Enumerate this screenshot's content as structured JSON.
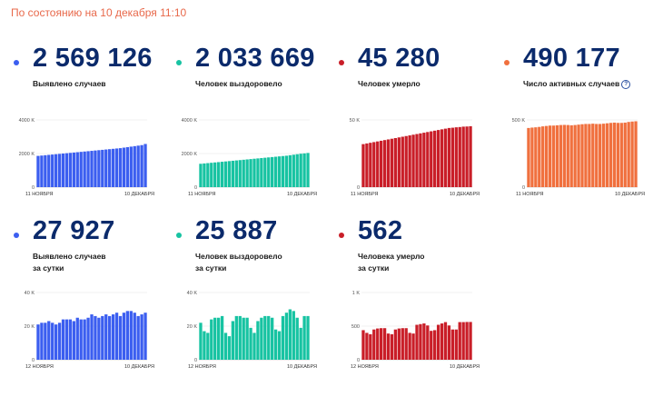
{
  "status": "По состоянию на 10 декабря 11:10",
  "cards": [
    {
      "id": "total",
      "value": "2 569 126",
      "label": "Выявлено случаев",
      "color": "#3b5ef0"
    },
    {
      "id": "recovered",
      "value": "2 033 669",
      "label": "Человек выздоровело",
      "color": "#17c3a2"
    },
    {
      "id": "deaths",
      "value": "45 280",
      "label": "Человек умерло",
      "color": "#c91e28"
    },
    {
      "id": "active",
      "value": "490 177",
      "label": "Число активных случаев",
      "color": "#f0703e",
      "has_info_icon": true
    },
    {
      "id": "daily_cases",
      "value": "27 927",
      "label": "Выявлено случаев\nза сутки",
      "color": "#3b5ef0"
    },
    {
      "id": "daily_recovered",
      "value": "25 887",
      "label": "Человек выздоровело\nза сутки",
      "color": "#17c3a2"
    },
    {
      "id": "daily_deaths",
      "value": "562",
      "label": "Человека умерло\nза сутки",
      "color": "#c91e28"
    }
  ],
  "chart_data": [
    {
      "type": "bar",
      "series": [
        {
          "values": [
            1860,
            1880,
            1900,
            1920,
            1940,
            1960,
            1980,
            2000,
            2020,
            2040,
            2060,
            2080,
            2100,
            2120,
            2140,
            2160,
            2180,
            2200,
            2220,
            2240,
            2260,
            2280,
            2300,
            2320,
            2350,
            2380,
            2410,
            2440,
            2470,
            2500,
            2569
          ]
        }
      ],
      "x_tick_labels": [
        "11 НОЯБРЯ",
        "10 ДЕКАБРЯ"
      ],
      "y_ticks": [
        0,
        2000,
        4000
      ],
      "y_tick_labels": [
        "0",
        "2000 K",
        "4000 K"
      ],
      "ylim": [
        0,
        4000
      ],
      "color": "#3b5ef0"
    },
    {
      "type": "bar",
      "series": [
        {
          "values": [
            1390,
            1410,
            1430,
            1450,
            1470,
            1490,
            1510,
            1530,
            1550,
            1570,
            1590,
            1610,
            1630,
            1650,
            1670,
            1690,
            1710,
            1730,
            1750,
            1770,
            1790,
            1810,
            1830,
            1850,
            1870,
            1900,
            1930,
            1960,
            1990,
            2010,
            2034
          ]
        }
      ],
      "x_tick_labels": [
        "11 НОЯБРЯ",
        "10 ДЕКАБРЯ"
      ],
      "y_ticks": [
        0,
        2000,
        4000
      ],
      "y_tick_labels": [
        "0",
        "2000 K",
        "4000 K"
      ],
      "ylim": [
        0,
        4000
      ],
      "color": "#17c3a2"
    },
    {
      "type": "bar",
      "series": [
        {
          "values": [
            32,
            32.5,
            33,
            33.5,
            34,
            34.5,
            35,
            35.5,
            36,
            36.5,
            37,
            37.5,
            38,
            38.5,
            39,
            39.5,
            40,
            40.5,
            41,
            41.5,
            42,
            42.5,
            43,
            43.5,
            44,
            44.2,
            44.5,
            44.7,
            45,
            45.1,
            45.3
          ]
        }
      ],
      "x_tick_labels": [
        "11 НОЯБРЯ",
        "10 ДЕКАБРЯ"
      ],
      "y_ticks": [
        0,
        50
      ],
      "y_tick_labels": [
        "0",
        "50 K"
      ],
      "ylim": [
        0,
        50
      ],
      "color": "#c91e28"
    },
    {
      "type": "bar",
      "series": [
        {
          "values": [
            440,
            443,
            445,
            448,
            452,
            455,
            458,
            458,
            460,
            462,
            463,
            462,
            460,
            462,
            465,
            468,
            470,
            470,
            472,
            470,
            470,
            472,
            475,
            478,
            480,
            478,
            478,
            480,
            485,
            488,
            490
          ]
        }
      ],
      "x_tick_labels": [
        "11 НОЯБРЯ",
        "10 ДЕКАБРЯ"
      ],
      "y_ticks": [
        0,
        500
      ],
      "y_tick_labels": [
        "0",
        "500 K"
      ],
      "ylim": [
        0,
        500
      ],
      "color": "#f0703e"
    },
    {
      "type": "bar",
      "series": [
        {
          "values": [
            21,
            22,
            22,
            23,
            22,
            21,
            22,
            24,
            24,
            24,
            23,
            25,
            24,
            24,
            25,
            27,
            26,
            25,
            26,
            27,
            26,
            27,
            28,
            26,
            28,
            29,
            29,
            28,
            26,
            27,
            28
          ]
        }
      ],
      "x_tick_labels": [
        "12 НОЯБРЯ",
        "10 ДЕКАБРЯ"
      ],
      "y_ticks": [
        0,
        20,
        40
      ],
      "y_tick_labels": [
        "0",
        "20 K",
        "40 K"
      ],
      "ylim": [
        0,
        40
      ],
      "color": "#3b5ef0"
    },
    {
      "type": "bar",
      "series": [
        {
          "values": [
            22,
            17,
            16,
            24,
            25,
            25,
            26,
            16,
            14,
            23,
            26,
            26,
            25,
            25,
            19,
            16,
            23,
            25,
            26,
            26,
            25,
            18,
            17,
            26,
            28,
            30,
            29,
            25,
            19,
            26,
            26
          ]
        }
      ],
      "x_tick_labels": [
        "12 НОЯБРЯ",
        "10 ДЕКАБРЯ"
      ],
      "y_ticks": [
        0,
        20,
        40
      ],
      "y_tick_labels": [
        "0",
        "20 K",
        "40 K"
      ],
      "ylim": [
        0,
        40
      ],
      "color": "#17c3a2"
    },
    {
      "type": "bar",
      "series": [
        {
          "values": [
            440,
            400,
            380,
            450,
            465,
            470,
            470,
            390,
            380,
            450,
            465,
            470,
            470,
            400,
            390,
            520,
            530,
            540,
            510,
            430,
            440,
            520,
            540,
            560,
            510,
            450,
            450,
            560,
            560,
            562,
            562
          ]
        }
      ],
      "x_tick_labels": [
        "12 НОЯБРЯ",
        "10 ДЕКАБРЯ"
      ],
      "y_ticks": [
        0,
        500,
        1000
      ],
      "y_tick_labels": [
        "0",
        "500",
        "1 K"
      ],
      "ylim": [
        0,
        1000
      ],
      "color": "#c91e28"
    }
  ]
}
